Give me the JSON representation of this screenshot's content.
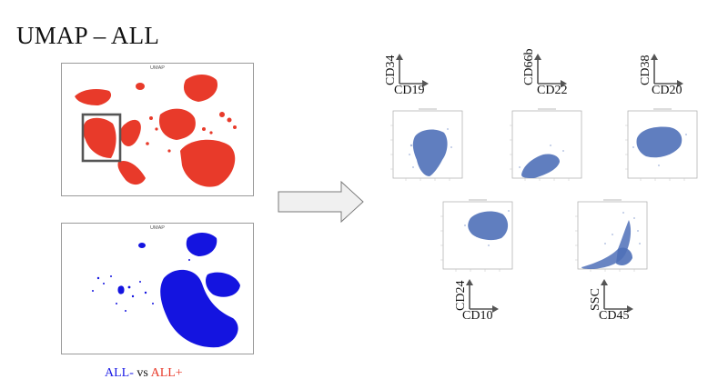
{
  "slide": {
    "title": "UMAP – ALL"
  },
  "umap_panels": [
    {
      "label": "UMAP",
      "color": "#e83a2a"
    },
    {
      "label": "UMAP",
      "color": "#1414e0"
    }
  ],
  "legend": {
    "neg": "ALL-",
    "vs": " vs ",
    "pos": "ALL+"
  },
  "colors": {
    "all_pos": "#e83a2a",
    "all_neg": "#1414e0",
    "flow_points": "#4f70b8"
  },
  "flow_plots": [
    {
      "x_marker": "CD19",
      "y_marker": "CD34"
    },
    {
      "x_marker": "CD22",
      "y_marker": "CD66b"
    },
    {
      "x_marker": "CD20",
      "y_marker": "CD38"
    },
    {
      "x_marker": "CD10",
      "y_marker": "CD24"
    },
    {
      "x_marker": "CD45",
      "y_marker": "SSC"
    }
  ]
}
